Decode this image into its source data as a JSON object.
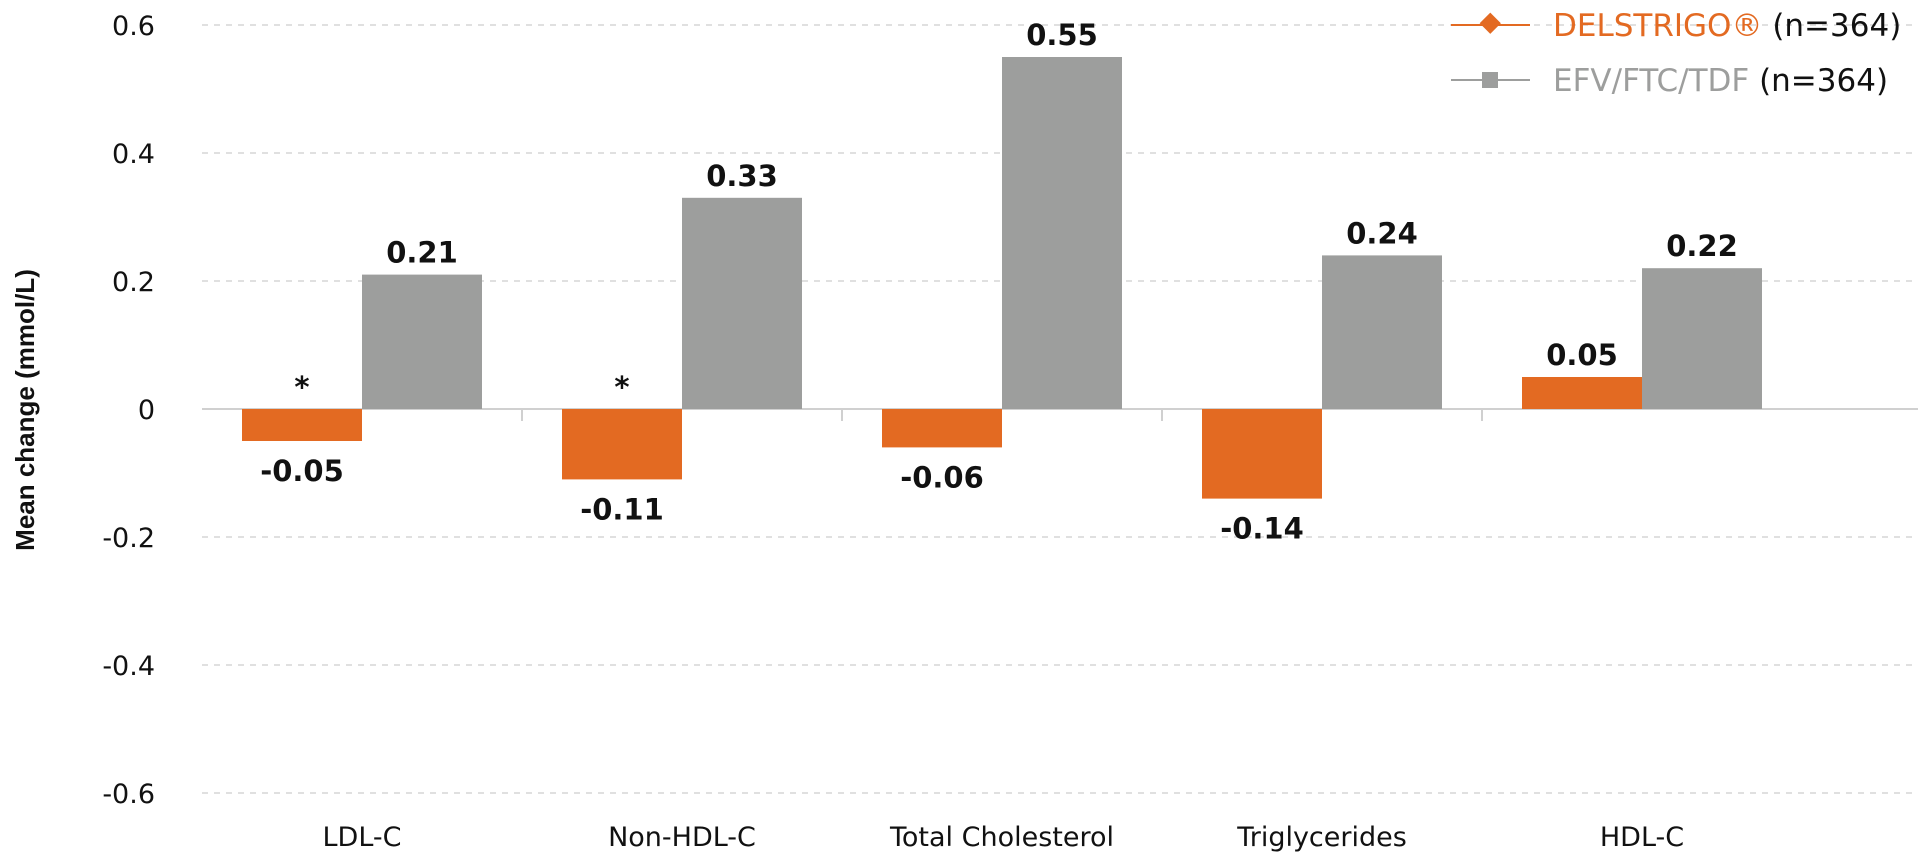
{
  "chart_data": {
    "type": "bar",
    "title": "",
    "xlabel": "",
    "ylabel": "Mean change (mmol/L)",
    "ylim": [
      -0.6,
      0.6
    ],
    "yticks": [
      "0.6",
      "0.4",
      "0.2",
      "0",
      "-0.2",
      "-0.4",
      "-0.6"
    ],
    "grid": true,
    "legend_position": "top-right",
    "categories": [
      "LDL-C",
      "Non-HDL-C",
      "Total Cholesterol",
      "Triglycerides",
      "HDL-C"
    ],
    "series": [
      {
        "name": "DELSTRIGO®",
        "n_label": "(n=364)",
        "color": "#E36A22",
        "marker": "diamond",
        "values": [
          -0.05,
          -0.11,
          -0.06,
          -0.14,
          0.05
        ],
        "labels": [
          "-0.05",
          "-0.11",
          "-0.06",
          "-0.14",
          "0.05"
        ]
      },
      {
        "name": "EFV/FTC/TDF",
        "n_label": "(n=364)",
        "color": "#9D9E9D",
        "marker": "square",
        "values": [
          0.21,
          0.33,
          0.55,
          0.24,
          0.22
        ],
        "labels": [
          "0.21",
          "0.33",
          "0.55",
          "0.24",
          "0.22"
        ]
      }
    ],
    "annotations": [
      {
        "category": "LDL-C",
        "text": "*"
      },
      {
        "category": "Non-HDL-C",
        "text": "*"
      }
    ]
  }
}
